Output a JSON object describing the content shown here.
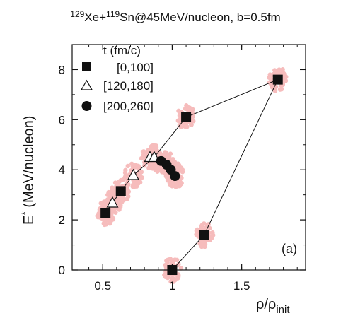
{
  "chart_data": {
    "type": "scatter",
    "title": {
      "sup1": "129",
      "part1": "Xe+",
      "sup2": "119",
      "part2": "Sn@45MeV/nucleon, b=0.5fm"
    },
    "xlabel": {
      "main": "ρ/ρ",
      "sub": "init"
    },
    "ylabel": {
      "main": "E",
      "sup": "*",
      "rest": " (MeV/nucleon)"
    },
    "xlim": [
      0.28,
      1.96
    ],
    "ylim": [
      0,
      9.0
    ],
    "x_ticks": [
      0.5,
      1,
      1.5
    ],
    "x_tick_labels": [
      "0.5",
      "1",
      "1.5"
    ],
    "y_ticks": [
      0,
      2,
      4,
      6,
      8
    ],
    "y_tick_labels": [
      "0",
      "2",
      "4",
      "6",
      "8"
    ],
    "grid": false,
    "legend": {
      "position": "top-left",
      "title": "t (fm/c)",
      "entries": [
        "[0,100]",
        "[120,180]",
        "[200,260]"
      ]
    },
    "panel_label": "(a)",
    "cloud_color": "#f6bcbc",
    "series": [
      {
        "name": "[0,100]",
        "marker": "filled-square",
        "points": [
          [
            0.52,
            2.28
          ],
          [
            0.63,
            3.15
          ],
          [
            1.1,
            6.1
          ],
          [
            1.76,
            7.6
          ],
          [
            1.23,
            1.4
          ],
          [
            1.0,
            0.0
          ]
        ]
      },
      {
        "name": "[120,180]",
        "marker": "open-triangle",
        "points": [
          [
            0.57,
            2.68
          ],
          [
            0.72,
            3.78
          ],
          [
            0.84,
            4.5
          ],
          [
            0.87,
            4.5
          ]
        ]
      },
      {
        "name": "[200,260]",
        "marker": "filled-circle",
        "points": [
          [
            0.92,
            4.35
          ],
          [
            0.96,
            4.2
          ],
          [
            0.99,
            4.0
          ],
          [
            1.02,
            3.75
          ]
        ]
      }
    ],
    "connecting_lines": [
      [
        [
          0.52,
          2.28
        ],
        [
          0.63,
          3.15
        ],
        [
          0.72,
          3.78
        ],
        [
          0.87,
          4.5
        ],
        [
          1.1,
          6.1
        ],
        [
          1.76,
          7.6
        ],
        [
          1.23,
          1.4
        ],
        [
          1.0,
          0.0
        ]
      ]
    ]
  }
}
